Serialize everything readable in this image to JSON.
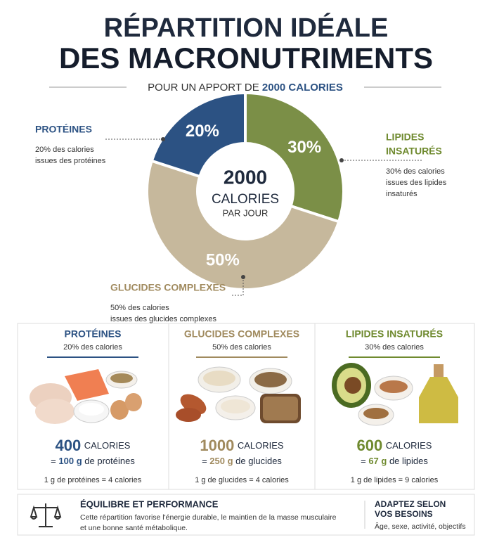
{
  "header": {
    "title_line1": "RÉPARTITION IDÉALE",
    "title_line2": "DES MACRONUTRIMENTS",
    "subtitle_prefix": "POUR UN APPORT DE",
    "subtitle_highlight": "2000 CALORIES"
  },
  "chart_data": {
    "type": "donut",
    "categories": [
      "LIPIDES INSATURÉS",
      "GLUCIDES COMPLEXES",
      "PROTÉINES"
    ],
    "values": [
      30,
      50,
      20
    ],
    "value_labels": [
      "30%",
      "50%",
      "20%"
    ],
    "colors": [
      "#7b8f47",
      "#c6b89c",
      "#2c5283"
    ],
    "center_text": [
      "2000",
      "CALORIES",
      "PAR JOUR"
    ],
    "annotations": [
      {
        "title": [
          "LIPIDES",
          "INSATURÉS"
        ],
        "lines": [
          "30% des calories",
          "issues des lipides",
          "insaturés"
        ],
        "color": "#6f8a2f"
      },
      {
        "title": [
          "GLUCIDES COMPLEXES"
        ],
        "lines": [
          "50% des calories",
          "issues des glucides complexes"
        ],
        "color": "#a08a5e"
      },
      {
        "title": [
          "PROTÉINES"
        ],
        "lines": [
          "20% des calories",
          "issues des protéines"
        ],
        "color": "#2c5283"
      }
    ]
  },
  "cards": [
    {
      "title": "PROTÉINES",
      "subtitle": "20% des calories",
      "calories": "400",
      "unit": "CALORIES",
      "grams_prefix": "=",
      "grams": "100 g",
      "grams_suffix": "de protéines",
      "note": "1 g de protéines = 4 calories",
      "color": "#2c5283"
    },
    {
      "title": "GLUCIDES COMPLEXES",
      "subtitle": "50% des calories",
      "calories": "1000",
      "unit": "CALORIES",
      "grams_prefix": "=",
      "grams": "250 g",
      "grams_suffix": "de glucides",
      "note": "1 g de glucides = 4 calories",
      "color": "#a08a5e"
    },
    {
      "title": "LIPIDES INSATURÉS",
      "subtitle": "30% des calories",
      "calories": "600",
      "unit": "CALORIES",
      "grams_prefix": "=",
      "grams": "67 g",
      "grams_suffix": "de lipides",
      "note": "1 g de lipides = 9 calories",
      "color": "#6f8a2f"
    }
  ],
  "footer": {
    "title": "ÉQUILIBRE ET PERFORMANCE",
    "body": [
      "Cette répartition favorise l'énergie durable, le maintien de la masse musculaire",
      "et une bonne santé métabolique."
    ],
    "side_title": [
      "ADAPTEZ SELON",
      "VOS BESOINS"
    ],
    "side_text": "Âge, sexe, activité, objectifs"
  }
}
